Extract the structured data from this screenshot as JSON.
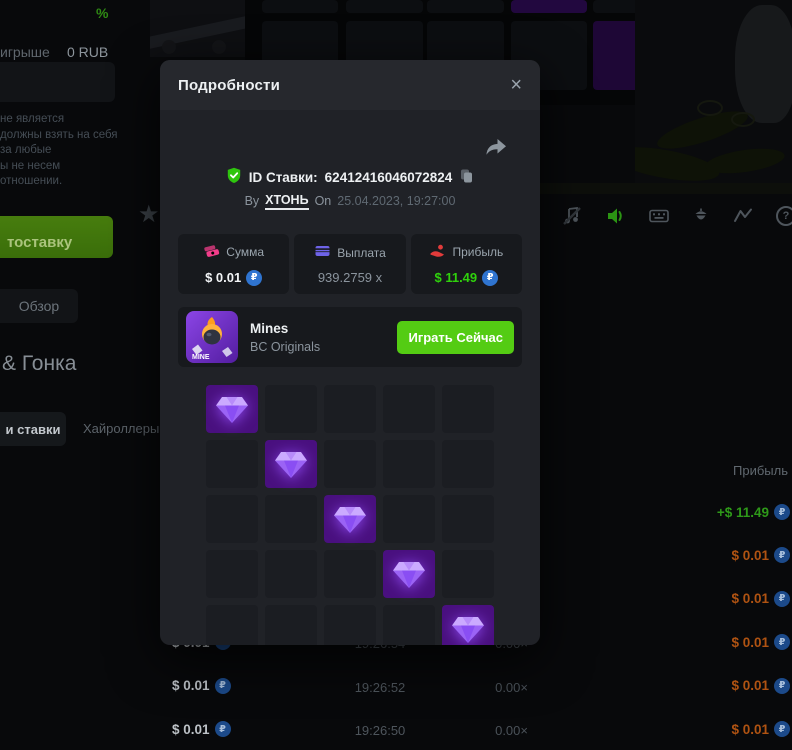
{
  "coin_symbol": "₽",
  "colors": {
    "accent_green": "#54cc13",
    "profit_green": "#2fd10c",
    "loss_orange": "#b05312",
    "coin_blue": "#2f74d0",
    "gem_purple": "#9b63f5",
    "verified_green": "#2ec50e"
  },
  "modal": {
    "title": "Подробности",
    "close_icon": "×",
    "share_icon": "share-arrow",
    "bet": {
      "id_label": "ID Ставки:",
      "id": "62412416046072824",
      "by_label": "By",
      "username": "ХТОНЬ",
      "on_label": "On",
      "datetime": "25.04.2023, 19:27:00"
    },
    "stats": [
      {
        "icon": "money-icon",
        "label": "Сумма",
        "value": "$ 0.01"
      },
      {
        "icon": "card-icon",
        "label": "Выплата",
        "value": "939.2759 x"
      },
      {
        "icon": "payout-hand-icon",
        "label": "Прибыль",
        "value": "$ 11.49"
      }
    ],
    "game": {
      "name": "Mines",
      "provider": "BC Originals",
      "icon_text": "MINE",
      "play_button": "Играть Сейчас"
    },
    "mines_grid": {
      "rows": 5,
      "cols": 5,
      "gem_cells": [
        [
          0,
          0
        ],
        [
          1,
          1
        ],
        [
          2,
          2
        ],
        [
          3,
          3
        ],
        [
          4,
          4
        ]
      ]
    }
  },
  "background": {
    "rate_icon": "%",
    "winnings_label": "игрыше",
    "winnings_value": "0 RUB",
    "disclaimer_lines": [
      "не является",
      "должны взять на себя",
      "за любые",
      "ы не несем",
      "отношении."
    ],
    "autobet_button": "тоставку",
    "overview_tab": "Обзор",
    "section_title": "& Гонка",
    "tab_my_bets": "и ставки",
    "tab_highrollers": "Хайроллеры",
    "profit_header": "Прибыль",
    "rows": [
      {
        "amount": "",
        "time": "",
        "mult": "",
        "profit": "+$ 11.49",
        "win": true
      },
      {
        "amount": "",
        "time": "",
        "mult": "",
        "profit": "$ 0.01",
        "win": false
      },
      {
        "amount": "",
        "time": "",
        "mult": "",
        "profit": "$ 0.01",
        "win": false
      },
      {
        "amount": "$ 0.01",
        "time": "19:26:54",
        "mult": "0.00×",
        "profit": "$ 0.01",
        "win": false
      },
      {
        "amount": "$ 0.01",
        "time": "19:26:52",
        "mult": "0.00×",
        "profit": "$ 0.01",
        "win": false
      },
      {
        "amount": "$ 0.01",
        "time": "19:26:50",
        "mult": "0.00×",
        "profit": "$ 0.01",
        "win": false
      }
    ]
  }
}
